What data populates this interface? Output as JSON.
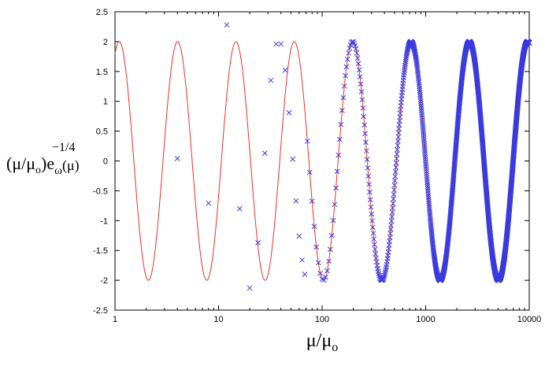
{
  "chart_data": {
    "type": "line",
    "title": "",
    "xlabel": "μ/μ",
    "xlabel_subscript": "o",
    "ylabel_parts": {
      "open": "(μ/μ",
      "sub_o": "o",
      "close": ")",
      "exponent": "−1/4",
      "e": "e",
      "omega": "ω",
      "arg": "(μ)"
    },
    "x_scale": "log",
    "xlim": [
      1,
      10000
    ],
    "ylim": [
      -2.5,
      2.5
    ],
    "x_ticks": [
      "1",
      "10",
      "100",
      "1000",
      "10000"
    ],
    "y_ticks": [
      "2.5",
      "2",
      "1.5",
      "1",
      "0.5",
      "0",
      "-0.5",
      "-1",
      "-1.5",
      "-2",
      "-2.5"
    ],
    "grid": false,
    "legend": "none",
    "series": [
      {
        "kind": "curve",
        "color": "#e8332a",
        "function": "2*cos(2*pi*(log10(x)/0.5635 - 0.0725))",
        "amplitude": 2,
        "period_decades": 0.5635,
        "phase_cycles": 0.0725
      },
      {
        "kind": "points",
        "marker": "x",
        "color": "#3b3be0",
        "x": [
          4,
          8,
          12,
          16,
          20,
          24,
          28,
          32,
          36,
          40,
          44,
          48,
          52,
          56,
          60,
          64,
          68
        ],
        "y": [
          0.04,
          -0.71,
          2.28,
          -0.8,
          -2.13,
          -1.37,
          0.13,
          1.35,
          1.96,
          1.96,
          1.52,
          0.81,
          0.03,
          -0.67,
          -1.26,
          -1.66,
          -1.9
        ],
        "dense_from": 72,
        "dense_step": 4,
        "dense_to": 10000,
        "dense_follows_curve": true
      }
    ]
  }
}
